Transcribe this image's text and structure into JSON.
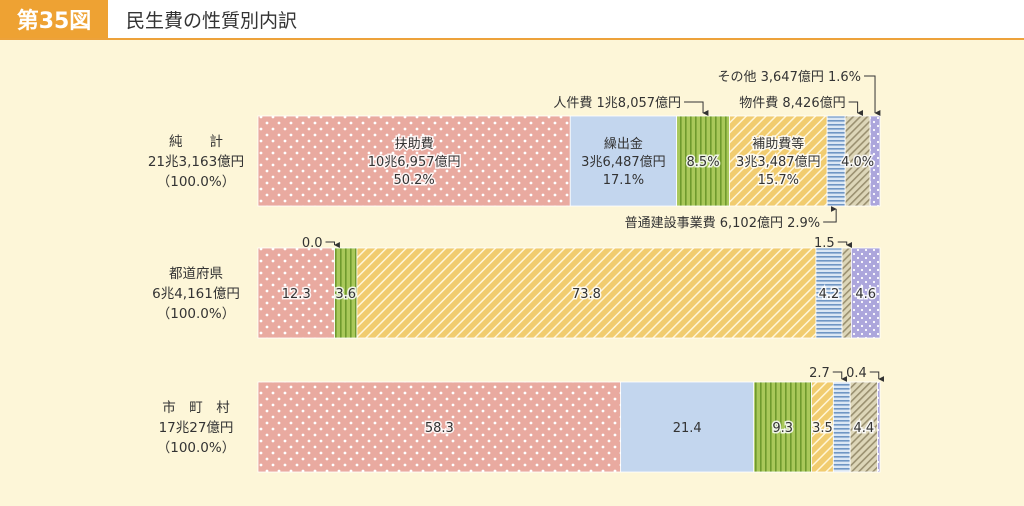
{
  "figure": {
    "number": "第35図",
    "title": "民生費の性質別内訳"
  },
  "chart_data": {
    "type": "bar",
    "stacked": true,
    "orientation": "horizontal",
    "unit": "%",
    "categories": [
      "人件費",
      "物件費",
      "扶助費",
      "普通建設事業費",
      "補助費等",
      "繰出金",
      "その他"
    ],
    "colors": {
      "扶助費": "#e9aaa0",
      "繰出金": "#c3d6ee",
      "人件費": "#a9c85a",
      "補助費等": "#f1cc6f",
      "普通建設事業費": "#8fb2d4",
      "物件費": "#c9bf96",
      "その他": "#aca6dc"
    },
    "rows": [
      {
        "label_lines": [
          "純　　計",
          "21兆3,163億円",
          "（100.0%）"
        ],
        "segments": [
          {
            "category": "扶助費",
            "value": 50.2,
            "label_lines": [
              "扶助費",
              "10兆6,957億円",
              "50.2%"
            ]
          },
          {
            "category": "繰出金",
            "value": 17.1,
            "label_lines": [
              "繰出金",
              "3兆6,487億円",
              "17.1%"
            ]
          },
          {
            "category": "人件費",
            "value": 8.5,
            "label_lines": [
              "8.5%"
            ]
          },
          {
            "category": "補助費等",
            "value": 15.7,
            "label_lines": [
              "補助費等",
              "3兆3,487億円",
              "15.7%"
            ]
          },
          {
            "category": "普通建設事業費",
            "value": 2.9,
            "label_lines": []
          },
          {
            "category": "物件費",
            "value": 4.0,
            "label_lines": [
              "4.0%"
            ]
          },
          {
            "category": "その他",
            "value": 1.6,
            "label_lines": []
          }
        ],
        "callouts": [
          {
            "text": "その他 3,647億円 1.6%",
            "category": "その他"
          },
          {
            "text": "人件費 1兆8,057億円",
            "category": "人件費"
          },
          {
            "text": "物件費 8,426億円",
            "category": "物件費"
          },
          {
            "text": "普通建設事業費 6,102億円 2.9%",
            "category": "普通建設事業費"
          }
        ]
      },
      {
        "label_lines": [
          "都道府県",
          "6兆4,161億円",
          "（100.0%）"
        ],
        "segments": [
          {
            "category": "扶助費",
            "value": 12.3,
            "label_lines": [
              "12.3"
            ]
          },
          {
            "category": "繰出金",
            "value": 0.0,
            "label_lines": []
          },
          {
            "category": "人件費",
            "value": 3.6,
            "label_lines": [
              "3.6"
            ]
          },
          {
            "category": "補助費等",
            "value": 73.8,
            "label_lines": [
              "73.8"
            ]
          },
          {
            "category": "普通建設事業費",
            "value": 4.2,
            "label_lines": [
              "4.2"
            ]
          },
          {
            "category": "物件費",
            "value": 1.5,
            "label_lines": []
          },
          {
            "category": "その他",
            "value": 4.6,
            "label_lines": [
              "4.6"
            ]
          }
        ],
        "callouts": [
          {
            "text": "0.0",
            "category": "繰出金"
          },
          {
            "text": "1.5",
            "category": "物件費"
          }
        ]
      },
      {
        "label_lines": [
          "市　町　村",
          "17兆27億円",
          "（100.0%）"
        ],
        "segments": [
          {
            "category": "扶助費",
            "value": 58.3,
            "label_lines": [
              "58.3"
            ]
          },
          {
            "category": "繰出金",
            "value": 21.4,
            "label_lines": [
              "21.4"
            ]
          },
          {
            "category": "人件費",
            "value": 9.3,
            "label_lines": [
              "9.3"
            ]
          },
          {
            "category": "補助費等",
            "value": 3.5,
            "label_lines": [
              "3.5"
            ]
          },
          {
            "category": "普通建設事業費",
            "value": 2.7,
            "label_lines": []
          },
          {
            "category": "物件費",
            "value": 4.4,
            "label_lines": [
              "4.4"
            ]
          },
          {
            "category": "その他",
            "value": 0.4,
            "label_lines": []
          }
        ],
        "callouts": [
          {
            "text": "2.7",
            "category": "普通建設事業費"
          },
          {
            "text": "0.4",
            "category": "その他"
          }
        ]
      }
    ]
  }
}
